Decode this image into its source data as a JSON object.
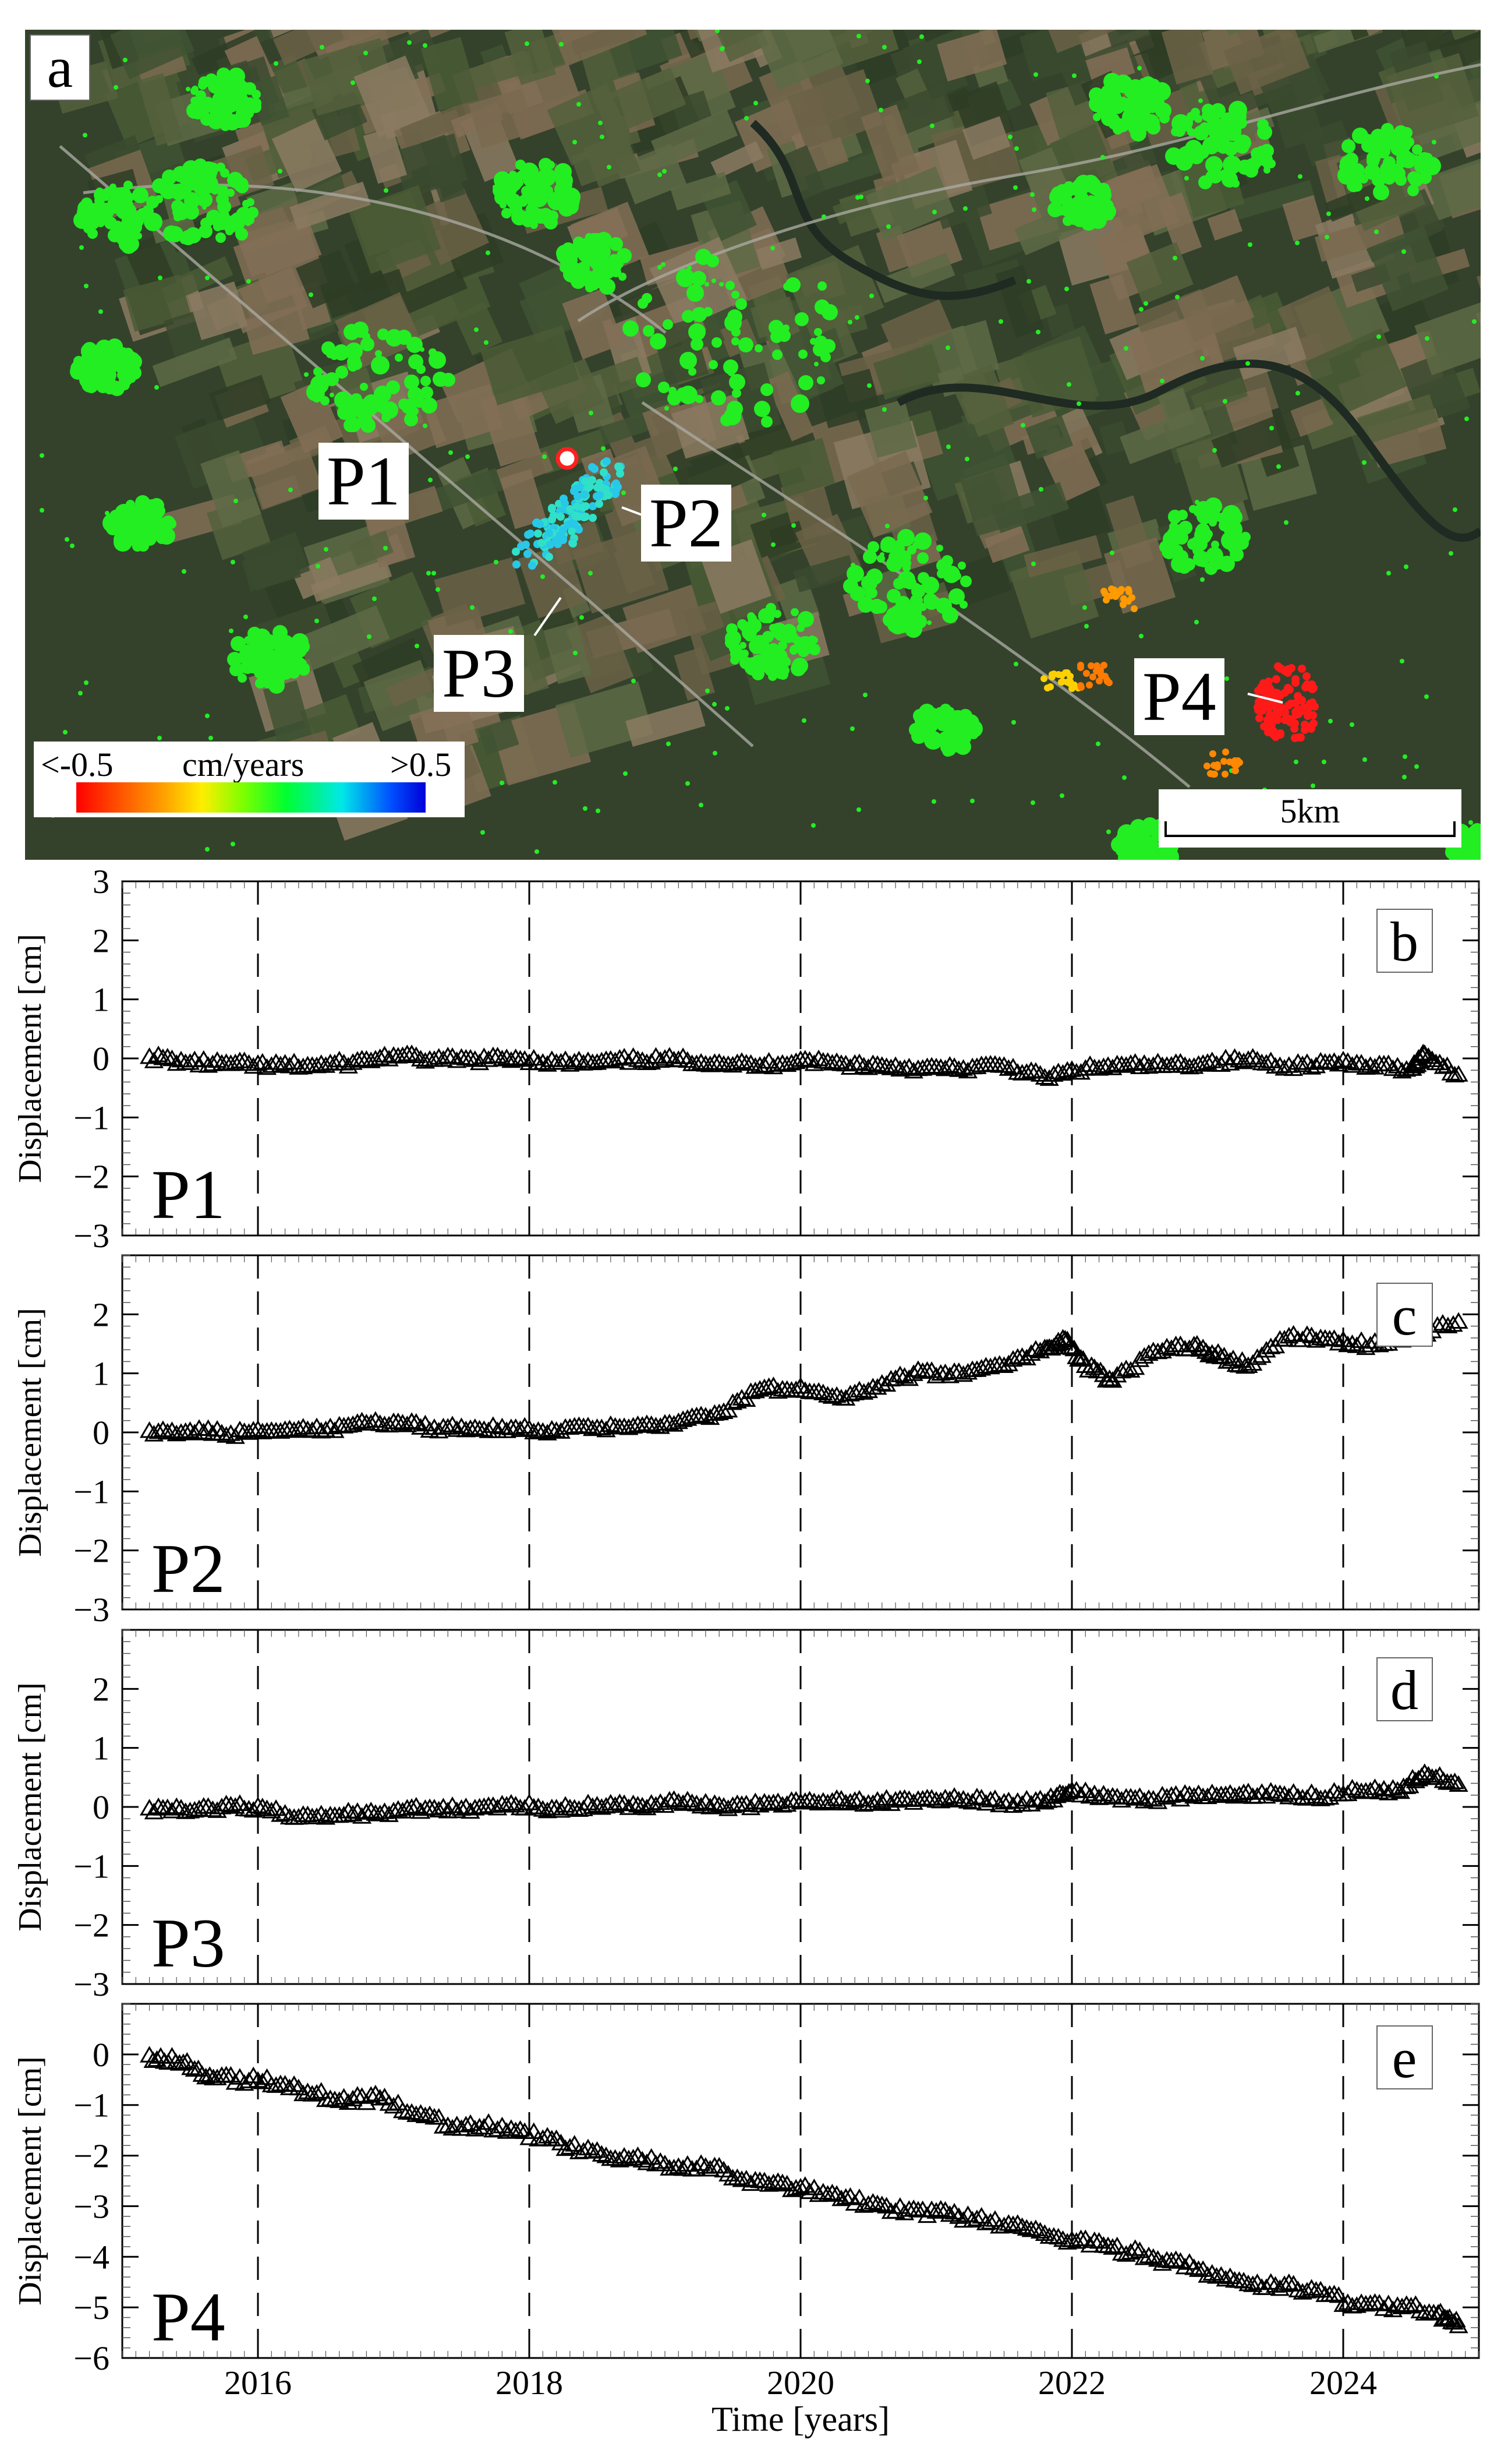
{
  "map": {
    "panel_label": "a",
    "point_labels": [
      "P1",
      "P2",
      "P3",
      "P4"
    ],
    "legend": {
      "min_label": "<-0.5",
      "unit": "cm/years",
      "max_label": ">0.5",
      "colors": [
        "#ff0000",
        "#ffee00",
        "#00ff30",
        "#00e8e8",
        "#0000d8"
      ]
    },
    "scale_label": "5km",
    "marker_color": "#ff2020",
    "green_color": "#22ee22"
  },
  "chart_data": [
    {
      "type": "scatter",
      "panel_label": "b",
      "point_label": "P1",
      "ylabel": "Displacement [cm]",
      "ylim": [
        -3,
        3
      ],
      "yticks": [
        -3,
        -2,
        -1,
        0,
        1,
        2,
        3
      ],
      "x": [
        2015.2,
        2015.5,
        2015.8,
        2016.1,
        2016.4,
        2016.7,
        2017.0,
        2017.3,
        2017.6,
        2017.9,
        2018.2,
        2018.5,
        2018.8,
        2019.1,
        2019.4,
        2019.7,
        2020.0,
        2020.3,
        2020.6,
        2020.9,
        2021.2,
        2021.5,
        2021.8,
        2022.1,
        2022.4,
        2022.7,
        2023.0,
        2023.3,
        2023.6,
        2023.9,
        2024.2,
        2024.5,
        2024.6,
        2024.85
      ],
      "y": [
        0.0,
        -0.1,
        -0.12,
        -0.15,
        -0.15,
        -0.1,
        0.02,
        -0.05,
        -0.05,
        -0.02,
        -0.1,
        -0.1,
        -0.05,
        -0.05,
        -0.1,
        -0.15,
        -0.05,
        -0.12,
        -0.15,
        -0.2,
        -0.2,
        -0.15,
        -0.35,
        -0.2,
        -0.15,
        -0.15,
        -0.1,
        -0.05,
        -0.15,
        -0.1,
        -0.15,
        -0.2,
        0.05,
        -0.3
      ]
    },
    {
      "type": "scatter",
      "panel_label": "c",
      "point_label": "P2",
      "ylabel": "Displacement [cm]",
      "ylim": [
        -3,
        3
      ],
      "yticks": [
        -3,
        -2,
        -1,
        0,
        1,
        2
      ],
      "x": [
        2015.2,
        2015.5,
        2015.8,
        2016.1,
        2016.4,
        2016.7,
        2017.0,
        2017.3,
        2017.6,
        2017.9,
        2018.2,
        2018.5,
        2018.8,
        2019.1,
        2019.4,
        2019.7,
        2020.0,
        2020.3,
        2020.6,
        2020.9,
        2021.2,
        2021.5,
        2021.8,
        2021.95,
        2022.1,
        2022.3,
        2022.6,
        2022.9,
        2023.1,
        2023.3,
        2023.6,
        2023.9,
        2024.2,
        2024.5,
        2024.85
      ],
      "y": [
        0.0,
        0.0,
        -0.05,
        0.0,
        0.0,
        0.1,
        0.15,
        0.05,
        0.05,
        0.05,
        0.0,
        0.05,
        0.1,
        0.15,
        0.3,
        0.7,
        0.75,
        0.55,
        0.8,
        1.0,
        0.95,
        1.1,
        1.4,
        1.55,
        1.1,
        0.85,
        1.35,
        1.45,
        1.25,
        1.1,
        1.6,
        1.55,
        1.45,
        1.6,
        1.85
      ]
    },
    {
      "type": "scatter",
      "panel_label": "d",
      "point_label": "P3",
      "ylabel": "Displacement [cm]",
      "ylim": [
        -3,
        3
      ],
      "yticks": [
        -3,
        -2,
        -1,
        0,
        1,
        2
      ],
      "x": [
        2015.2,
        2015.5,
        2015.8,
        2016.1,
        2016.4,
        2016.7,
        2017.0,
        2017.3,
        2017.6,
        2017.9,
        2018.2,
        2018.5,
        2018.8,
        2019.1,
        2019.4,
        2019.7,
        2020.0,
        2020.3,
        2020.6,
        2020.9,
        2021.2,
        2021.5,
        2021.8,
        2022.0,
        2022.3,
        2022.6,
        2022.9,
        2023.2,
        2023.5,
        2023.8,
        2024.1,
        2024.4,
        2024.6,
        2024.85
      ],
      "y": [
        -0.05,
        -0.1,
        0.0,
        -0.1,
        -0.2,
        -0.15,
        -0.1,
        -0.05,
        -0.05,
        0.0,
        -0.05,
        0.0,
        0.0,
        0.05,
        0.0,
        0.0,
        0.05,
        0.1,
        0.05,
        0.1,
        0.1,
        0.05,
        0.05,
        0.25,
        0.15,
        0.1,
        0.15,
        0.15,
        0.2,
        0.15,
        0.25,
        0.25,
        0.55,
        0.35
      ]
    },
    {
      "type": "scatter",
      "panel_label": "e",
      "point_label": "P4",
      "xlabel": "Time [years]",
      "ylabel": "Displacement [cm]",
      "ylim": [
        -6,
        1
      ],
      "yticks": [
        -6,
        -5,
        -4,
        -3,
        -2,
        -1,
        0
      ],
      "xticks": [
        2016,
        2018,
        2020,
        2022,
        2024
      ],
      "x": [
        2015.2,
        2015.45,
        2015.7,
        2016.0,
        2016.3,
        2016.6,
        2016.9,
        2017.2,
        2017.5,
        2017.8,
        2018.1,
        2018.4,
        2018.7,
        2019.0,
        2019.3,
        2019.6,
        2019.9,
        2020.2,
        2020.5,
        2020.8,
        2021.1,
        2021.4,
        2021.7,
        2022.0,
        2022.3,
        2022.6,
        2022.9,
        2023.2,
        2023.5,
        2023.8,
        2024.1,
        2024.4,
        2024.7,
        2024.85
      ],
      "y": [
        -0.05,
        -0.2,
        -0.5,
        -0.55,
        -0.7,
        -0.95,
        -0.9,
        -1.2,
        -1.5,
        -1.45,
        -1.7,
        -1.95,
        -2.05,
        -2.2,
        -2.25,
        -2.5,
        -2.6,
        -2.8,
        -3.0,
        -3.1,
        -3.2,
        -3.35,
        -3.5,
        -3.7,
        -3.85,
        -4.05,
        -4.25,
        -4.5,
        -4.6,
        -4.7,
        -5.0,
        -5.0,
        -5.15,
        -5.4
      ]
    }
  ],
  "x_axis": {
    "xlim": [
      2015,
      2025
    ],
    "gridlines": [
      2016,
      2018,
      2020,
      2022,
      2024
    ],
    "ticklabels": [
      "2016",
      "2018",
      "2020",
      "2022",
      "2024"
    ],
    "xlabel": "Time [years]"
  }
}
